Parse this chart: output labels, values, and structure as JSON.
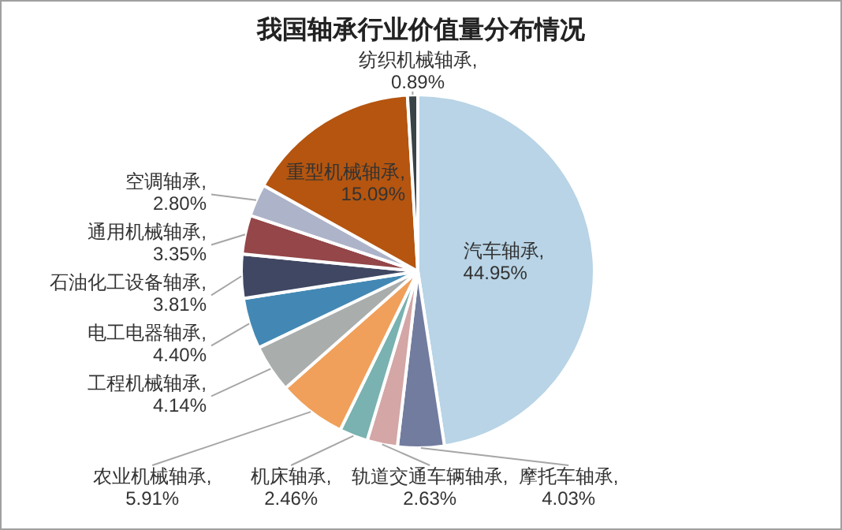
{
  "chart_data": {
    "type": "pie",
    "title": "我国轴承行业价值量分布情况",
    "categories": [
      "汽车轴承",
      "摩托车轴承",
      "轨道交通车辆轴承",
      "机床轴承",
      "农业机械轴承",
      "工程机械轴承",
      "电工电器轴承",
      "石油化工设备轴承",
      "通用机械轴承",
      "空调轴承",
      "重型机械轴承",
      "纺织机械轴承"
    ],
    "values": [
      44.95,
      4.03,
      2.63,
      2.46,
      5.91,
      4.14,
      4.4,
      3.81,
      3.35,
      2.8,
      15.09,
      0.89
    ],
    "value_labels": [
      ", 44.95%",
      ", 4.03%",
      ", 2.63%",
      ", 2.46%",
      ", 5.91%",
      ", 4.14%",
      ", 4.40%",
      ", 3.81%",
      ", 3.35%",
      ", 2.80%",
      ", 15.09%",
      ", 0.89%"
    ],
    "colors": [
      "#b8d4e6",
      "#717c9f",
      "#d4a6a6",
      "#79b2b0",
      "#f0a05a",
      "#a9adac",
      "#4388b4",
      "#3f4762",
      "#944649",
      "#adb3c9",
      "#b5550f",
      "#3a4346"
    ]
  }
}
